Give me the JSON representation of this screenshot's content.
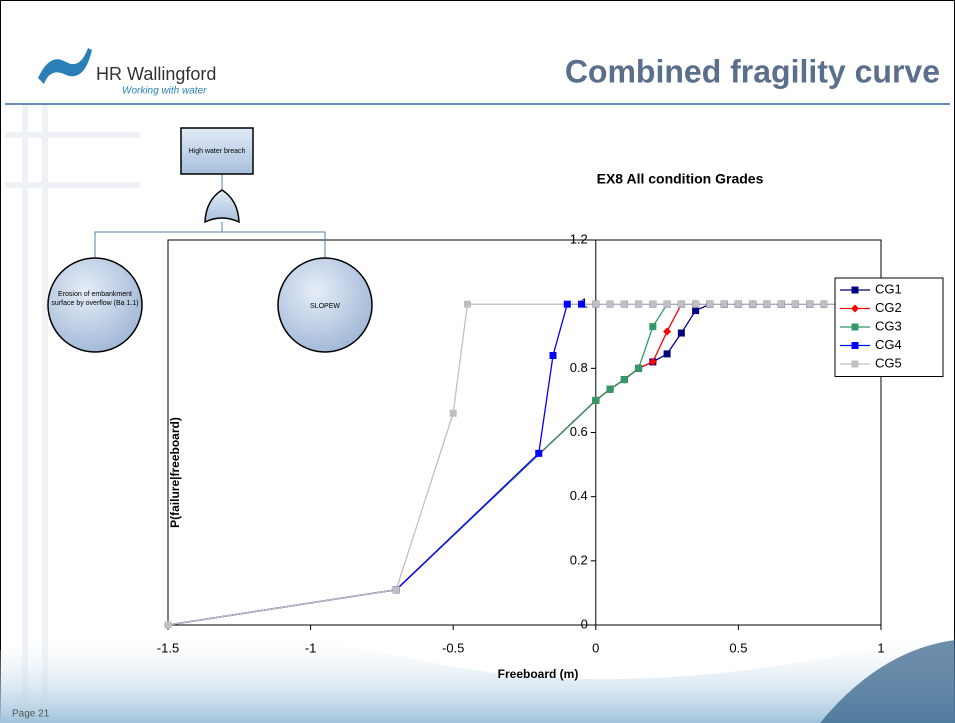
{
  "header": {
    "title": "Combined fragility curve",
    "logo": "HR Wallingford",
    "tagline": "Working with water"
  },
  "footer": {
    "page": "Page 21"
  },
  "fault_tree": {
    "nodes": [
      {
        "label": "High water breach"
      },
      {
        "label": "Erosion of embankment surface by overflow (Ba 1.1)"
      },
      {
        "label": "SLOPEW"
      }
    ]
  },
  "chart_data": {
    "type": "line",
    "title": "EX8 All condition Grades",
    "x_label": "Freeboard (m)",
    "y_label": "P(failure|freeboard)",
    "xlim": [
      -1.5,
      1
    ],
    "xticks": [
      -1.5,
      -1,
      -0.5,
      0,
      0.5,
      1
    ],
    "ylim": [
      0,
      1.2
    ],
    "yticks": [
      0,
      0.2,
      0.4,
      0.6,
      0.8,
      1,
      1.2
    ],
    "legend": "right",
    "series": [
      {
        "name": "CG1",
        "color": "#000080",
        "marker": "square",
        "x": [
          -1.5,
          -0.7,
          0,
          0.05,
          0.1,
          0.15,
          0.2,
          0.25,
          0.3,
          0.35,
          0.4,
          0.45,
          0.5,
          0.55,
          0.6,
          0.65,
          0.7,
          0.75,
          0.8,
          0.85,
          0.9,
          0.95,
          1
        ],
        "values": [
          0,
          0.11,
          0.7,
          0.735,
          0.765,
          0.8,
          0.82,
          0.845,
          0.91,
          0.98,
          1,
          1,
          1,
          1,
          1,
          1,
          1,
          1,
          1,
          1,
          1,
          1,
          1
        ]
      },
      {
        "name": "CG2",
        "color": "#ff0000",
        "marker": "diamond",
        "x": [
          -1.5,
          -0.7,
          0,
          0.05,
          0.1,
          0.15,
          0.2,
          0.25,
          0.3,
          0.35,
          0.4,
          0.45,
          0.5,
          0.55,
          0.6,
          0.65,
          0.7,
          0.75,
          0.8,
          0.85,
          0.9,
          0.95,
          1
        ],
        "values": [
          0,
          0.11,
          0.7,
          0.735,
          0.765,
          0.8,
          0.82,
          0.915,
          1,
          1,
          1,
          1,
          1,
          1,
          1,
          1,
          1,
          1,
          1,
          1,
          1,
          1,
          1
        ]
      },
      {
        "name": "CG3",
        "color": "#339966",
        "marker": "square",
        "x": [
          -1.5,
          -0.7,
          0,
          0.05,
          0.1,
          0.15,
          0.2,
          0.25,
          0.3,
          0.35,
          0.4,
          0.45,
          0.5,
          0.55,
          0.6,
          0.65,
          0.7,
          0.75,
          0.8,
          0.85,
          0.9,
          0.95,
          1
        ],
        "values": [
          0,
          0.11,
          0.7,
          0.735,
          0.765,
          0.8,
          0.93,
          1,
          1,
          1,
          1,
          1,
          1,
          1,
          1,
          1,
          1,
          1,
          1,
          1,
          1,
          1,
          1
        ]
      },
      {
        "name": "CG4",
        "color": "#0000ff",
        "marker": "square",
        "x": [
          -1.5,
          -0.7,
          -0.2,
          -0.15,
          -0.1,
          -0.05,
          0,
          0.05,
          0.1,
          0.15,
          0.2,
          0.25,
          0.3,
          0.35,
          0.4,
          0.45,
          0.5,
          0.55,
          0.6,
          0.65,
          0.7,
          0.75,
          0.8,
          0.85,
          0.9,
          0.95,
          1
        ],
        "values": [
          0,
          0.11,
          0.535,
          0.84,
          1,
          1,
          1,
          1,
          1,
          1,
          1,
          1,
          1,
          1,
          1,
          1,
          1,
          1,
          1,
          1,
          1,
          1,
          1,
          1,
          1,
          1,
          1
        ]
      },
      {
        "name": "CG5",
        "color": "#c0c0c0",
        "marker": "square",
        "x": [
          -1.5,
          -0.7,
          -0.5,
          -0.45,
          0,
          0.05,
          0.1,
          0.15,
          0.2,
          0.25,
          0.3,
          0.35,
          0.4,
          0.45,
          0.5,
          0.55,
          0.6,
          0.65,
          0.7,
          0.75,
          0.8,
          0.85,
          0.9,
          0.95,
          1
        ],
        "values": [
          0,
          0.11,
          0.66,
          1,
          1,
          1,
          1,
          1,
          1,
          1,
          1,
          1,
          1,
          1,
          1,
          1,
          1,
          1,
          1,
          1,
          1,
          1,
          1,
          1,
          1
        ]
      }
    ]
  }
}
